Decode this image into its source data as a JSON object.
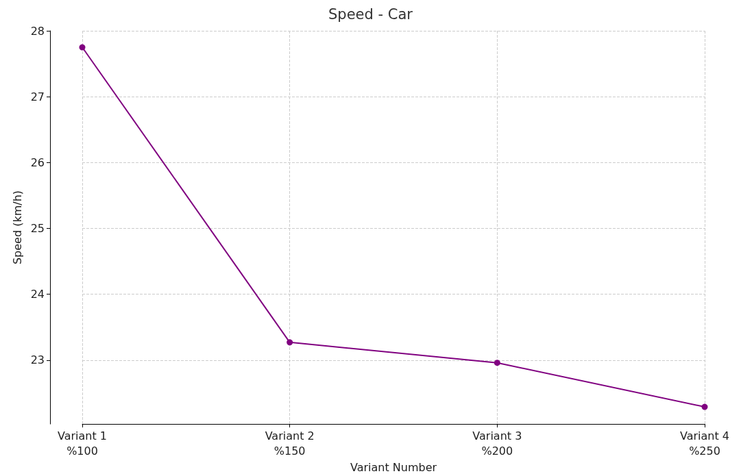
{
  "chart_data": {
    "type": "line",
    "title": "Speed - Car",
    "xlabel": "Variant Number",
    "ylabel": "Speed (km/h)",
    "categories": [
      "Variant 1\n%100",
      "Variant 2\n%150",
      "Variant 3\n%200",
      "Variant 4\n%250"
    ],
    "series": [
      {
        "color": "#800080",
        "values": [
          27.75,
          23.27,
          22.96,
          22.29
        ]
      }
    ],
    "ylim": [
      22.03,
      28
    ],
    "yticks": [
      23,
      24,
      25,
      26,
      27,
      28
    ],
    "grid": true,
    "marker": "circle",
    "line_style": "solid"
  }
}
